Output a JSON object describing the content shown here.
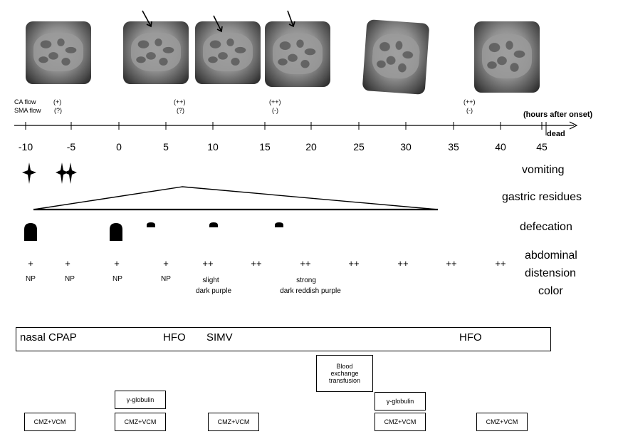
{
  "flow_rows": [
    {
      "label": "CA flow",
      "values": [
        "(+)",
        "(++)",
        "(++)",
        "(++)"
      ]
    },
    {
      "label": "SMA flow",
      "values": [
        "(?)",
        "(?)",
        "(-)",
        "(-)"
      ]
    }
  ],
  "axis": {
    "unit_label": "(hours after onset)",
    "end_label": "dead",
    "ticks": [
      "-10",
      "-5",
      "0",
      "5",
      "10",
      "15",
      "20",
      "25",
      "30",
      "35",
      "40",
      "45"
    ]
  },
  "rows": {
    "vomiting": "vomiting",
    "gastric": "gastric residues",
    "defecation": "defecation",
    "abdominal": "abdominal",
    "distension": "distension",
    "color": "color"
  },
  "distension_values": [
    "+",
    "+",
    "+",
    "+",
    "++",
    "++",
    "++",
    "++",
    "++",
    "++",
    "++"
  ],
  "color_values": [
    "NP",
    "NP",
    "NP",
    "NP"
  ],
  "color_notes": [
    {
      "line1": "slight",
      "line2": "dark purple"
    },
    {
      "line1": "strong",
      "line2": "dark reddish purple"
    }
  ],
  "respiratory": [
    "nasal CPAP",
    "HFO",
    "SIMV",
    "HFO"
  ],
  "treatments": {
    "blood": [
      "Blood",
      "exchange",
      "transfusion"
    ],
    "globulin": "γ-globulin",
    "antibiotic": "CMZ+VCM"
  }
}
